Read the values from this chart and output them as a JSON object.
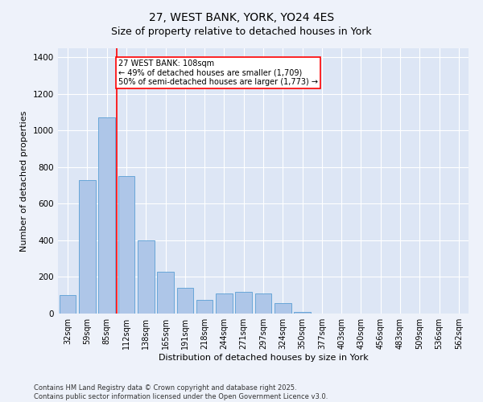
{
  "title": "27, WEST BANK, YORK, YO24 4ES",
  "subtitle": "Size of property relative to detached houses in York",
  "xlabel": "Distribution of detached houses by size in York",
  "ylabel": "Number of detached properties",
  "categories": [
    "32sqm",
    "59sqm",
    "85sqm",
    "112sqm",
    "138sqm",
    "165sqm",
    "191sqm",
    "218sqm",
    "244sqm",
    "271sqm",
    "297sqm",
    "324sqm",
    "350sqm",
    "377sqm",
    "403sqm",
    "430sqm",
    "456sqm",
    "483sqm",
    "509sqm",
    "536sqm",
    "562sqm"
  ],
  "values": [
    100,
    730,
    1070,
    750,
    400,
    230,
    140,
    75,
    110,
    120,
    110,
    55,
    10,
    0,
    0,
    0,
    0,
    0,
    0,
    0,
    0
  ],
  "bar_color": "#aec6e8",
  "bar_edge_color": "#5a9fd4",
  "vline_color": "red",
  "vline_x": 2.5,
  "annotation_text": "27 WEST BANK: 108sqm\n← 49% of detached houses are smaller (1,709)\n50% of semi-detached houses are larger (1,773) →",
  "annotation_box_color": "#ffffff",
  "annotation_box_edge": "red",
  "fig_bg_color": "#eef2fa",
  "bg_color": "#dde6f5",
  "grid_color": "#ffffff",
  "yticks": [
    0,
    200,
    400,
    600,
    800,
    1000,
    1200,
    1400
  ],
  "ylim": [
    0,
    1450
  ],
  "footer1": "Contains HM Land Registry data © Crown copyright and database right 2025.",
  "footer2": "Contains public sector information licensed under the Open Government Licence v3.0.",
  "title_fontsize": 10,
  "subtitle_fontsize": 9,
  "tick_fontsize": 7,
  "label_fontsize": 8,
  "annotation_fontsize": 7,
  "footer_fontsize": 6
}
